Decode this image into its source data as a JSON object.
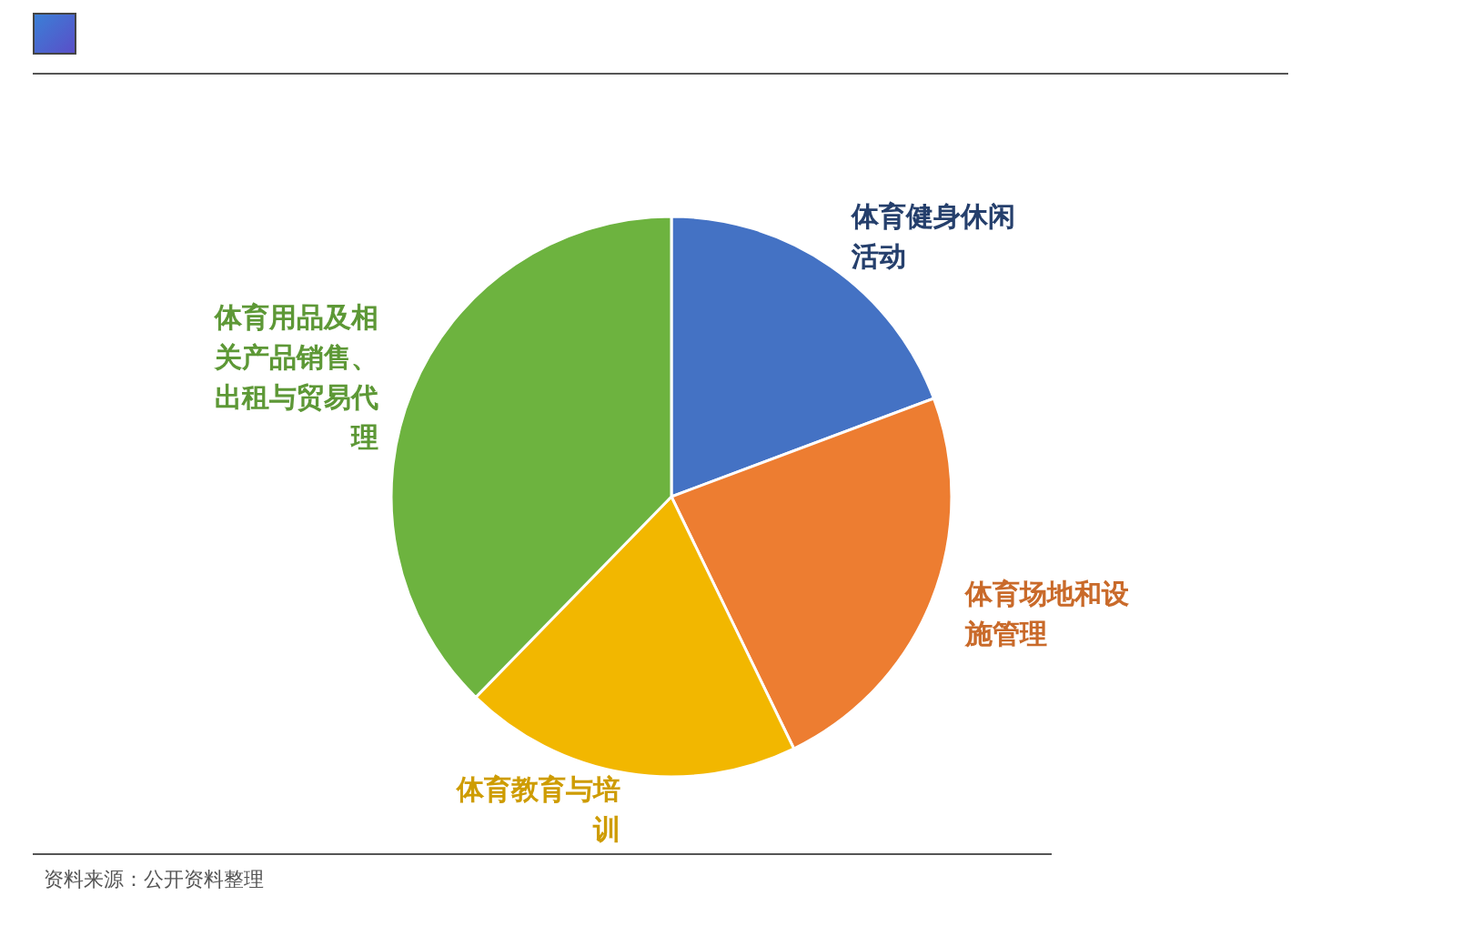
{
  "chart_data": {
    "type": "pie",
    "categories": [
      "体育健身休闲活动",
      "体育场地和设施管理",
      "体育教育与培训",
      "体育用品及相关产品销售、出租与贸易代理"
    ],
    "values": [
      19.3,
      23.5,
      19.5,
      37.7
    ],
    "colors": [
      "#4472c4",
      "#ed7d31",
      "#f2b700",
      "#6db33f"
    ],
    "annotations": [
      "资料来源：公开资料整理"
    ]
  }
}
